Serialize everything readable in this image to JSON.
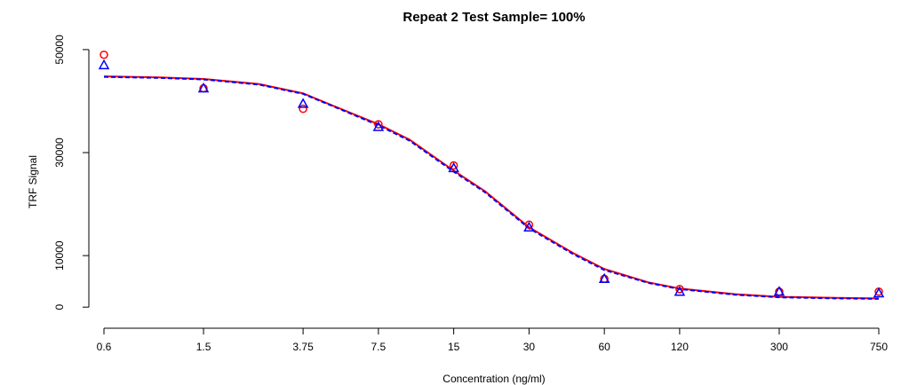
{
  "chart_data": {
    "type": "scatter",
    "title": "Repeat 2 Test Sample= 100%",
    "x_label": "Concentration (ng/ml)",
    "y_label": "TRF Signal",
    "xscale": "log",
    "xlim": [
      0.6,
      750
    ],
    "xticks": [
      0.6,
      1.5,
      3.75,
      7.5,
      15,
      30,
      60,
      120,
      300,
      750
    ],
    "ylim": [
      -4100,
      53600
    ],
    "yticks": [
      0,
      10000,
      30000,
      50000
    ],
    "series": [
      {
        "type": "line",
        "color": "#ff0000",
        "dash": false,
        "x": [
          0.6,
          1,
          1.5,
          2.5,
          3.75,
          5,
          7.5,
          10,
          15,
          20,
          30,
          45,
          60,
          90,
          120,
          200,
          300,
          500,
          750
        ],
        "values": [
          44800,
          44600,
          44300,
          43300,
          41500,
          39000,
          35500,
          32500,
          26500,
          22500,
          15500,
          10500,
          7400,
          4800,
          3600,
          2500,
          2000,
          1800,
          1700
        ]
      },
      {
        "type": "line",
        "color": "#0000ff",
        "dash": true,
        "x": [
          0.6,
          1,
          1.5,
          2.5,
          3.75,
          5,
          7.5,
          10,
          15,
          20,
          30,
          45,
          60,
          90,
          120,
          200,
          300,
          500,
          750
        ],
        "values": [
          44700,
          44500,
          44200,
          43200,
          41400,
          38900,
          35300,
          32300,
          26300,
          22300,
          15300,
          10300,
          7200,
          4700,
          3500,
          2400,
          1900,
          1700,
          1600
        ]
      },
      {
        "type": "scatter",
        "marker": "circle",
        "color": "#ff0000",
        "x": [
          0.6,
          1.5,
          3.75,
          7.5,
          15,
          30,
          60,
          120,
          300,
          750
        ],
        "values": [
          49000,
          42500,
          38500,
          35500,
          27500,
          16000,
          5500,
          3500,
          3000,
          3000
        ]
      },
      {
        "type": "scatter",
        "marker": "triangle",
        "color": "#0000ff",
        "x": [
          0.6,
          1.5,
          3.75,
          7.5,
          15,
          30,
          60,
          120,
          300,
          750
        ],
        "values": [
          47000,
          42500,
          39500,
          35000,
          27000,
          15500,
          5500,
          3000,
          3000,
          2700
        ]
      }
    ]
  }
}
